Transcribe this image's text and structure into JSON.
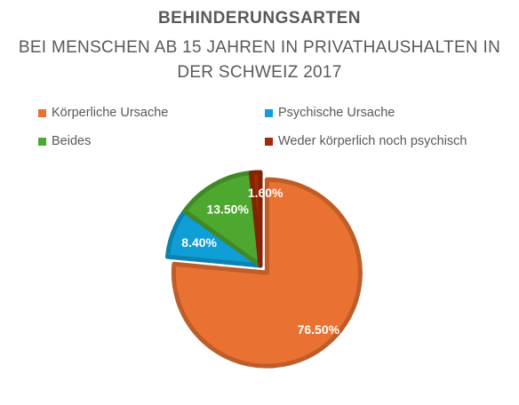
{
  "chart_data": {
    "type": "pie",
    "title": "BEHINDERUNGSARTEN",
    "subtitle_lines": [
      "BEI MENSCHEN AB 15 JAHREN IN PRIVATHAUSHALTEN IN",
      "DER SCHWEIZ 2017"
    ],
    "categories": [
      "Körperliche Ursache",
      "Psychische Ursache",
      "Beides",
      "Weder körperlich noch psychisch"
    ],
    "values": [
      76.5,
      8.4,
      13.5,
      1.6
    ],
    "labels": [
      "76.50%",
      "8.40%",
      "13.50%",
      "1.60%"
    ],
    "colors": [
      "#E97132",
      "#0F9ED5",
      "#4EA72E",
      "#A02B00"
    ],
    "exploded": "Körperliche Ursache",
    "legend_position": "top"
  }
}
